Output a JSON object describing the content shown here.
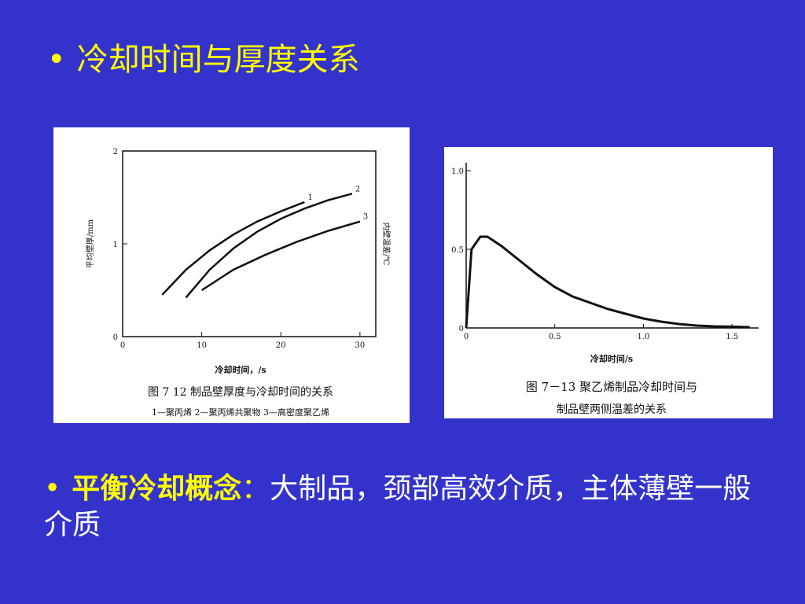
{
  "slide": {
    "heading": {
      "bullet": "•",
      "text": "冷却时间与厚度关系"
    },
    "footer": {
      "bullet": "•",
      "bold_text": "平衡冷却概念",
      "separator": "：",
      "rest_text": "大制品，颈部高效介质，主体薄壁一般介质"
    }
  },
  "chart_data": [
    {
      "type": "line",
      "caption": "图 7  12  制品壁厚度与冷却时间的关系",
      "legend_line": "1—聚丙烯  2—聚丙烯共聚物  3—高密度聚乙烯",
      "xlabel": "冷却时间，/s",
      "ylabel": "平均壁厚/mm",
      "right_label": "内壁温差/℃",
      "xlim": [
        0,
        32
      ],
      "ylim": [
        0,
        2
      ],
      "x_ticks": [
        "0",
        "10",
        "20",
        "30"
      ],
      "y_ticks": [
        "0",
        "1",
        "2"
      ],
      "series": [
        {
          "name": "1",
          "x": [
            5,
            8,
            11,
            14,
            17,
            20,
            23
          ],
          "y": [
            0.45,
            0.72,
            0.93,
            1.1,
            1.24,
            1.35,
            1.45
          ]
        },
        {
          "name": "2",
          "x": [
            8,
            11,
            14,
            17,
            20,
            23,
            26,
            29
          ],
          "y": [
            0.42,
            0.72,
            0.95,
            1.13,
            1.27,
            1.38,
            1.47,
            1.54
          ]
        },
        {
          "name": "3",
          "x": [
            10,
            14,
            18,
            22,
            26,
            30
          ],
          "y": [
            0.5,
            0.72,
            0.88,
            1.02,
            1.14,
            1.24
          ]
        }
      ]
    },
    {
      "type": "line",
      "caption": "图 7－13  聚乙烯制品冷却时间与",
      "caption2": "制品壁两侧温差的关系",
      "xlabel": "冷却时间/s",
      "xlim": [
        0,
        1.65
      ],
      "ylim": [
        0,
        1.0
      ],
      "x_ticks": [
        "0",
        "0.5",
        "1.0",
        "1.5"
      ],
      "y_ticks": [
        "0",
        "0.5",
        "1.0"
      ],
      "series": [
        {
          "x": [
            0,
            0.03,
            0.08,
            0.12,
            0.2,
            0.3,
            0.4,
            0.5,
            0.6,
            0.7,
            0.8,
            0.9,
            1.0,
            1.1,
            1.2,
            1.3,
            1.4,
            1.5,
            1.6
          ],
          "y": [
            0,
            0.5,
            0.58,
            0.58,
            0.52,
            0.43,
            0.34,
            0.26,
            0.2,
            0.16,
            0.12,
            0.09,
            0.06,
            0.04,
            0.025,
            0.015,
            0.01,
            0.008,
            0.005
          ]
        }
      ]
    }
  ]
}
